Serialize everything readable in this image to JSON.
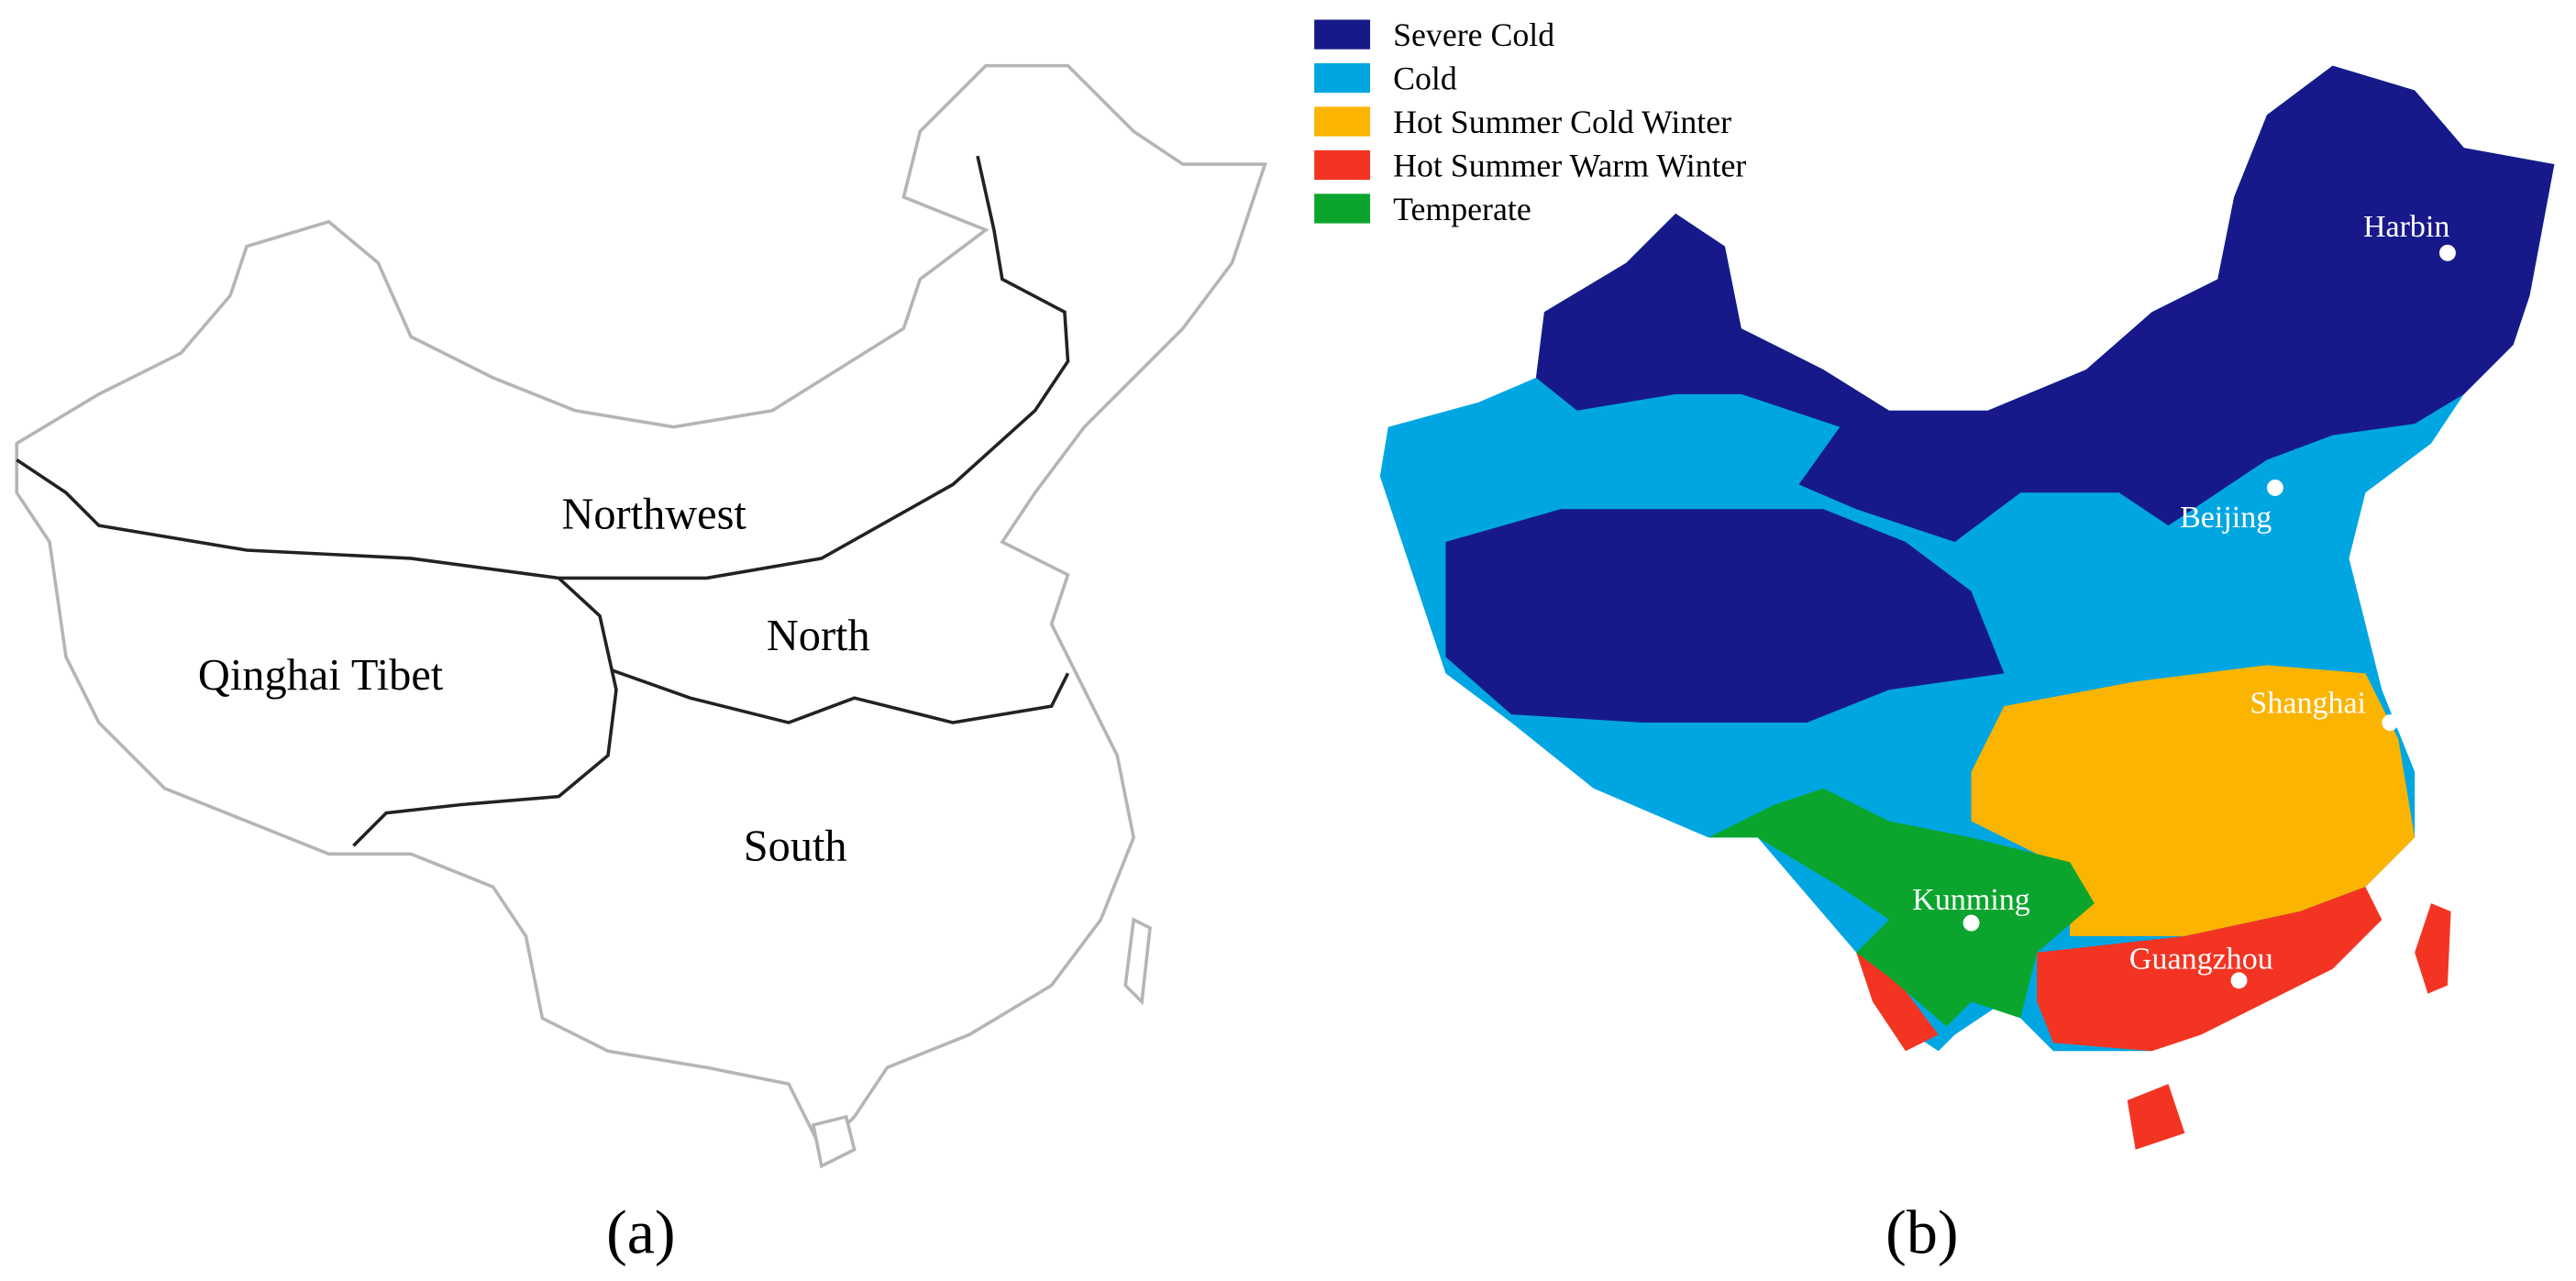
{
  "panel_a": {
    "regions": [
      "Northwest",
      "North",
      "Qinghai Tibet",
      "South"
    ],
    "caption": "(a)"
  },
  "panel_b": {
    "legend": [
      {
        "label": "Severe Cold",
        "color": "#17198a"
      },
      {
        "label": "Cold",
        "color": "#00a6e2"
      },
      {
        "label": "Hot Summer Cold Winter",
        "color": "#fbb400"
      },
      {
        "label": "Hot Summer Warm Winter",
        "color": "#f43423"
      },
      {
        "label": "Temperate",
        "color": "#0ba52e"
      }
    ],
    "cities": [
      "Harbin",
      "Beijing",
      "Shanghai",
      "Kunming",
      "Guangzhou"
    ],
    "caption": "(b)"
  }
}
